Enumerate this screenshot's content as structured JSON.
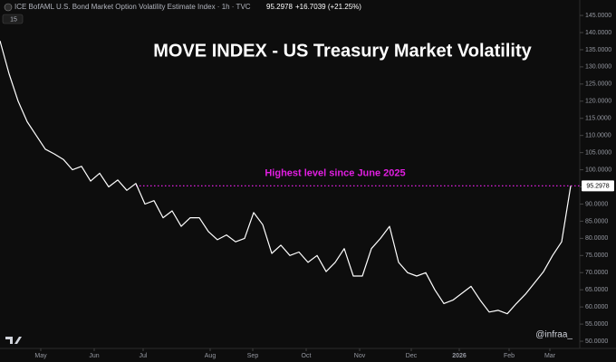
{
  "chart_data": {
    "type": "line",
    "title": "MOVE INDEX - US Treasury Market Volatility",
    "header": "ICE BofAML U.S. Bond Market Option Volatility Estimate Index · 1h · TVC",
    "header_price": "95.2978",
    "header_change": "+16.7039 (+21.25%)",
    "badge": "15",
    "watermark": "@infraa_",
    "color": "#ffffff",
    "values": [
      137.6,
      128,
      120,
      114,
      110,
      106,
      104.6,
      103,
      100,
      101,
      96.7,
      99,
      95,
      97,
      94,
      96,
      90,
      91,
      86,
      88,
      83.5,
      86,
      86,
      82,
      79.6,
      81,
      79,
      80,
      87.5,
      84,
      75.6,
      78,
      75,
      76,
      73,
      75,
      70.3,
      73,
      77,
      69,
      69,
      77,
      80,
      83.5,
      73,
      70,
      69,
      70,
      65,
      61,
      62,
      64,
      66,
      62,
      58.5,
      59,
      58,
      61,
      63.7,
      67,
      70.3,
      75,
      79,
      95.2978
    ],
    "xlim": [
      0,
      64
    ],
    "xticks": [
      {
        "value": 4.5,
        "label": "May"
      },
      {
        "value": 10.4,
        "label": "Jun"
      },
      {
        "value": 15.8,
        "label": "Jul"
      },
      {
        "value": 23.2,
        "label": "Aug"
      },
      {
        "value": 27.9,
        "label": "Sep"
      },
      {
        "value": 33.8,
        "label": "Oct"
      },
      {
        "value": 39.7,
        "label": "Nov"
      },
      {
        "value": 45.4,
        "label": "Dec"
      },
      {
        "value": 50.7,
        "label": "2026"
      },
      {
        "value": 56.2,
        "label": "Feb"
      },
      {
        "value": 60.7,
        "label": "Mar"
      }
    ],
    "ylim": [
      47.9,
      149.5
    ],
    "yticks": [
      {
        "value": 50,
        "label": "50.0000"
      },
      {
        "value": 55,
        "label": "55.0000"
      },
      {
        "value": 60,
        "label": "60.0000"
      },
      {
        "value": 65,
        "label": "65.0000"
      },
      {
        "value": 70,
        "label": "70.0000"
      },
      {
        "value": 75,
        "label": "75.0000"
      },
      {
        "value": 80,
        "label": "80.0000"
      },
      {
        "value": 85,
        "label": "85.0000"
      },
      {
        "value": 90,
        "label": "90.0000"
      },
      {
        "value": 95,
        "label": "95.0000"
      },
      {
        "value": 100,
        "label": "100.0000"
      },
      {
        "value": 105,
        "label": "105.0000"
      },
      {
        "value": 110,
        "label": "110.0000"
      },
      {
        "value": 115,
        "label": "115.0000"
      },
      {
        "value": 120,
        "label": "120.0000"
      },
      {
        "value": 125,
        "label": "125.0000"
      },
      {
        "value": 130,
        "label": "130.0000"
      },
      {
        "value": 135,
        "label": "135.0000"
      },
      {
        "value": 140,
        "label": "140.0000"
      },
      {
        "value": 145,
        "label": "145.0000"
      }
    ],
    "hline": {
      "value": 95.2978,
      "label": "Highest level since June 2025",
      "price_label": "95.2978",
      "color": "#e21ee2",
      "start": 15
    }
  }
}
